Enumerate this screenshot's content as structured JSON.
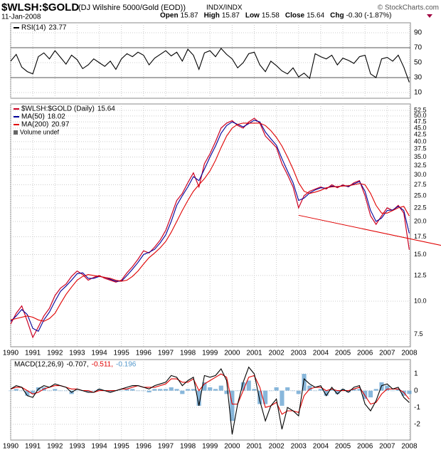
{
  "header": {
    "symbol": "$WLSH:$GOLD",
    "description": "(DJ Wilshire 5000/Gold (EOD))",
    "exchange": "INDX/INDX",
    "date": "11-Jan-2008",
    "copyright": "© StockCharts.com",
    "quote": [
      {
        "label": "Open",
        "value": "15.87"
      },
      {
        "label": "High",
        "value": "15.87"
      },
      {
        "label": "Low",
        "value": "15.58"
      },
      {
        "label": "Close",
        "value": "15.64"
      },
      {
        "label": "Chg",
        "value": "-0.30 (-1.87%)"
      }
    ]
  },
  "chart_data": [
    {
      "type": "line",
      "xlim": [
        1990,
        2008.05
      ],
      "ylim": [
        2.4,
        103.3
      ],
      "yticks": [
        10,
        30,
        50,
        70,
        90
      ],
      "reference_lines": [
        30,
        70
      ],
      "grid": true,
      "x": [
        1990,
        1990.25,
        1990.5,
        1990.75,
        1991,
        1991.25,
        1991.5,
        1991.75,
        1992,
        1992.25,
        1992.5,
        1992.75,
        1993,
        1993.25,
        1993.5,
        1993.75,
        1994,
        1994.25,
        1994.5,
        1994.75,
        1995,
        1995.25,
        1995.5,
        1995.75,
        1996,
        1996.25,
        1996.5,
        1996.75,
        1997,
        1997.25,
        1997.5,
        1997.75,
        1998,
        1998.25,
        1998.5,
        1998.75,
        1999,
        1999.25,
        1999.5,
        1999.75,
        2000,
        2000.25,
        2000.5,
        2000.75,
        2001,
        2001.25,
        2001.5,
        2001.75,
        2002,
        2002.25,
        2002.5,
        2002.75,
        2003,
        2003.25,
        2003.5,
        2003.75,
        2004,
        2004.25,
        2004.5,
        2004.75,
        2005,
        2005.25,
        2005.5,
        2005.75,
        2006,
        2006.25,
        2006.5,
        2006.75,
        2007,
        2007.25,
        2007.5,
        2007.75,
        2008
      ],
      "series": [
        {
          "name": "RSI(14)",
          "color": "#000000",
          "values": [
            52,
            61,
            44,
            38,
            35,
            58,
            63,
            55,
            66,
            57,
            48,
            60,
            54,
            42,
            47,
            55,
            50,
            45,
            52,
            41,
            55,
            62,
            58,
            64,
            60,
            47,
            56,
            61,
            66,
            59,
            64,
            52,
            68,
            60,
            41,
            63,
            66,
            58,
            69,
            61,
            55,
            43,
            50,
            62,
            64,
            47,
            38,
            52,
            46,
            39,
            35,
            43,
            31,
            36,
            29,
            62,
            58,
            55,
            60,
            47,
            56,
            53,
            49,
            58,
            60,
            35,
            30,
            55,
            57,
            52,
            60,
            44,
            23.77
          ]
        }
      ]
    },
    {
      "type": "line",
      "xlim": [
        1990,
        2008.05
      ],
      "ylim": [
        6.73,
        55.5
      ],
      "ylog": true,
      "grid": true,
      "yticks": [
        7.5,
        {
          "value": 10,
          "label": "10.0"
        },
        12.5,
        {
          "value": 15,
          "label": "15.0"
        },
        17.5,
        {
          "value": 20,
          "label": "20.0"
        },
        22.5,
        {
          "value": 25,
          "label": "25.0"
        },
        27.5,
        {
          "value": 30,
          "label": "30.0"
        },
        32.5,
        {
          "value": 35,
          "label": "35.0"
        },
        37.5,
        {
          "value": 40,
          "label": "40.0"
        },
        42.5,
        {
          "value": 45,
          "label": "45.0"
        },
        47.5,
        {
          "value": 50,
          "label": "50.0"
        },
        52.5
      ],
      "xticks": [
        1990,
        1991,
        1992,
        1993,
        1994,
        1995,
        1996,
        1997,
        1998,
        1999,
        2000,
        2001,
        2002,
        2003,
        2004,
        2005,
        2006,
        2007,
        2008
      ],
      "legend_extra": "Volume undef",
      "trendline": {
        "x": [
          2003,
          2009.5
        ],
        "y": [
          21.1,
          16.2
        ],
        "color": "#e00000"
      },
      "x": [
        1990,
        1990.25,
        1990.5,
        1990.75,
        1991,
        1991.25,
        1991.5,
        1991.75,
        1992,
        1992.25,
        1992.5,
        1992.75,
        1993,
        1993.25,
        1993.5,
        1993.75,
        1994,
        1994.25,
        1994.5,
        1994.75,
        1995,
        1995.25,
        1995.5,
        1995.75,
        1996,
        1996.25,
        1996.5,
        1996.75,
        1997,
        1997.25,
        1997.5,
        1997.75,
        1998,
        1998.25,
        1998.5,
        1998.75,
        1999,
        1999.25,
        1999.5,
        1999.75,
        2000,
        2000.25,
        2000.5,
        2000.75,
        2001,
        2001.25,
        2001.5,
        2001.75,
        2002,
        2002.25,
        2002.5,
        2002.75,
        2003,
        2003.25,
        2003.5,
        2003.75,
        2004,
        2004.25,
        2004.5,
        2004.75,
        2005,
        2005.25,
        2005.5,
        2005.75,
        2006,
        2006.25,
        2006.5,
        2006.75,
        2007,
        2007.25,
        2007.5,
        2007.75,
        2008
      ],
      "series": [
        {
          "name": "$WLSH:$GOLD (Daily)",
          "color": "#cc0022",
          "values": [
            8.2,
            9.0,
            9.6,
            8.4,
            7.3,
            8.0,
            8.8,
            9.4,
            10.5,
            11.2,
            11.6,
            12.4,
            13.0,
            12.6,
            12.0,
            12.3,
            12.5,
            12.2,
            12.0,
            11.8,
            12.0,
            12.8,
            13.5,
            14.4,
            15.5,
            15.2,
            16.0,
            17.0,
            18.5,
            21.0,
            24.0,
            25.5,
            28.0,
            30.5,
            27.0,
            33.0,
            36.0,
            40.0,
            45.0,
            47.0,
            48.0,
            46.0,
            45.0,
            47.5,
            49.0,
            47.0,
            42.0,
            40.0,
            38.0,
            33.0,
            30.0,
            27.0,
            22.5,
            25.0,
            26.0,
            26.5,
            27.0,
            26.5,
            27.5,
            26.8,
            27.5,
            27.0,
            28.0,
            28.5,
            25.0,
            21.0,
            19.5,
            21.0,
            22.5,
            22.0,
            23.0,
            21.5,
            15.64
          ]
        },
        {
          "name": "MA(50)",
          "color": "#000099",
          "values": [
            8.4,
            8.8,
            9.3,
            8.9,
            7.9,
            7.7,
            8.5,
            9.1,
            10.0,
            10.9,
            11.4,
            12.0,
            12.7,
            12.8,
            12.2,
            12.2,
            12.4,
            12.3,
            12.1,
            11.9,
            11.9,
            12.5,
            13.2,
            14.0,
            15.0,
            15.3,
            15.7,
            16.6,
            17.8,
            20.0,
            23.0,
            25.0,
            27.0,
            29.5,
            28.5,
            31.5,
            35.0,
            38.5,
            43.0,
            46.0,
            47.5,
            46.5,
            45.5,
            46.8,
            48.2,
            47.5,
            43.5,
            41.0,
            38.8,
            34.5,
            31.0,
            28.0,
            24.0,
            24.5,
            25.6,
            26.3,
            26.8,
            26.7,
            27.2,
            27.0,
            27.3,
            27.1,
            27.7,
            28.3,
            26.0,
            22.0,
            20.0,
            20.6,
            22.0,
            22.1,
            22.8,
            22.0,
            18.02
          ]
        },
        {
          "name": "MA(200)",
          "color": "#e00000",
          "values": [
            8.5,
            8.6,
            8.7,
            8.8,
            8.7,
            8.5,
            8.4,
            8.6,
            9.0,
            9.8,
            10.6,
            11.3,
            12.0,
            12.4,
            12.6,
            12.5,
            12.4,
            12.3,
            12.2,
            12.0,
            11.9,
            12.0,
            12.4,
            13.0,
            13.8,
            14.6,
            15.2,
            15.9,
            16.8,
            18.2,
            20.0,
            22.0,
            24.0,
            26.0,
            27.5,
            29.0,
            31.0,
            34.0,
            38.0,
            42.0,
            45.0,
            46.5,
            47.0,
            47.0,
            47.0,
            47.0,
            46.0,
            44.0,
            41.5,
            38.5,
            35.0,
            31.5,
            28.0,
            26.0,
            25.5,
            25.8,
            26.2,
            26.8,
            27.0,
            27.1,
            27.2,
            27.3,
            27.5,
            27.8,
            27.5,
            25.5,
            23.0,
            21.5,
            21.5,
            22.0,
            22.5,
            22.8,
            20.97
          ]
        }
      ]
    },
    {
      "type": "line",
      "xlim": [
        1990,
        2008.05
      ],
      "ylim": [
        -2.94,
        1.85
      ],
      "yticks": [
        -2,
        -1,
        0,
        1
      ],
      "grid": true,
      "xticks": [
        1990,
        1991,
        1992,
        1993,
        1994,
        1995,
        1996,
        1997,
        1998,
        1999,
        2000,
        2001,
        2002,
        2003,
        2004,
        2005,
        2006,
        2007,
        2008
      ],
      "x": [
        1990,
        1990.25,
        1990.5,
        1990.75,
        1991,
        1991.25,
        1991.5,
        1991.75,
        1992,
        1992.25,
        1992.5,
        1992.75,
        1993,
        1993.25,
        1993.5,
        1993.75,
        1994,
        1994.25,
        1994.5,
        1994.75,
        1995,
        1995.25,
        1995.5,
        1995.75,
        1996,
        1996.25,
        1996.5,
        1996.75,
        1997,
        1997.25,
        1997.5,
        1997.75,
        1998,
        1998.25,
        1998.5,
        1998.75,
        1999,
        1999.25,
        1999.5,
        1999.75,
        2000,
        2000.25,
        2000.5,
        2000.75,
        2001,
        2001.25,
        2001.5,
        2001.75,
        2002,
        2002.25,
        2002.5,
        2002.75,
        2003,
        2003.25,
        2003.5,
        2003.75,
        2004,
        2004.25,
        2004.5,
        2004.75,
        2005,
        2005.25,
        2005.5,
        2005.75,
        2006,
        2006.25,
        2006.5,
        2006.75,
        2007,
        2007.25,
        2007.5,
        2007.75,
        2008
      ],
      "series": [
        {
          "name": "MACD(12,26,9)",
          "color": "#5599cc",
          "style": "bar",
          "last_label": "-0.196",
          "values": [
            0.0,
            0.1,
            0.0,
            -0.3,
            -0.2,
            0.2,
            0.2,
            0.0,
            0.1,
            0.0,
            0.0,
            -0.2,
            0.0,
            0.0,
            -0.1,
            0.0,
            0.1,
            0.0,
            -0.1,
            0.0,
            0.0,
            0.1,
            0.1,
            0.0,
            0.0,
            -0.1,
            0.1,
            0.1,
            0.1,
            0.2,
            0.1,
            -0.2,
            0.1,
            0.1,
            -0.9,
            0.5,
            0.2,
            0.1,
            0.3,
            -0.2,
            -1.8,
            0.0,
            0.5,
            0.6,
            0.1,
            -0.8,
            -0.8,
            0.0,
            0.2,
            -0.9,
            0.2,
            0.0,
            -0.2,
            1.0,
            0.3,
            0.0,
            0.1,
            -0.3,
            0.1,
            -0.2,
            0.1,
            -0.1,
            0.1,
            0.1,
            -0.5,
            -0.4,
            0.1,
            0.5,
            0.3,
            0.0,
            0.1,
            -0.3,
            -0.196
          ]
        },
        {
          "color": "#e00000",
          "last_label": "-0.511,",
          "values": [
            0.1,
            0.2,
            0.2,
            0.0,
            -0.2,
            -0.1,
            0.1,
            0.2,
            0.3,
            0.3,
            0.2,
            0.1,
            0.1,
            0.0,
            0.0,
            -0.1,
            0.0,
            0.0,
            0.0,
            0.0,
            0.1,
            0.1,
            0.2,
            0.3,
            0.2,
            0.2,
            0.2,
            0.3,
            0.4,
            0.7,
            0.7,
            0.5,
            0.5,
            0.7,
            0.0,
            0.4,
            0.6,
            0.8,
            1.0,
            0.8,
            -0.8,
            -0.8,
            0.0,
            0.8,
            0.9,
            0.2,
            -1.0,
            -0.9,
            -0.7,
            -1.4,
            -1.2,
            -1.2,
            -1.3,
            -0.3,
            0.1,
            0.2,
            0.2,
            0.0,
            0.1,
            0.0,
            0.0,
            0.0,
            0.1,
            0.2,
            -0.3,
            -0.8,
            -0.7,
            -0.2,
            0.1,
            0.1,
            0.1,
            -0.1,
            -0.511
          ]
        },
        {
          "color": "#000000",
          "last_label": "-0.707,",
          "values": [
            0.1,
            0.3,
            0.2,
            -0.3,
            -0.4,
            0.1,
            0.3,
            0.2,
            0.4,
            0.3,
            0.2,
            -0.1,
            0.1,
            0.0,
            -0.1,
            -0.1,
            0.1,
            0.0,
            -0.1,
            0.0,
            0.1,
            0.2,
            0.3,
            0.3,
            0.2,
            0.1,
            0.3,
            0.4,
            0.5,
            0.9,
            0.8,
            0.3,
            0.6,
            0.8,
            -0.9,
            0.9,
            0.8,
            0.9,
            1.3,
            0.6,
            -2.6,
            -0.8,
            0.5,
            1.4,
            1.0,
            -0.6,
            -1.8,
            -0.9,
            -0.5,
            -2.3,
            -1.0,
            -1.2,
            -1.5,
            0.7,
            0.4,
            0.2,
            0.3,
            -0.3,
            0.2,
            -0.2,
            0.1,
            -0.1,
            0.2,
            0.3,
            -0.8,
            -1.2,
            -0.6,
            0.3,
            0.4,
            0.1,
            0.2,
            -0.4,
            -0.707
          ]
        }
      ]
    }
  ]
}
